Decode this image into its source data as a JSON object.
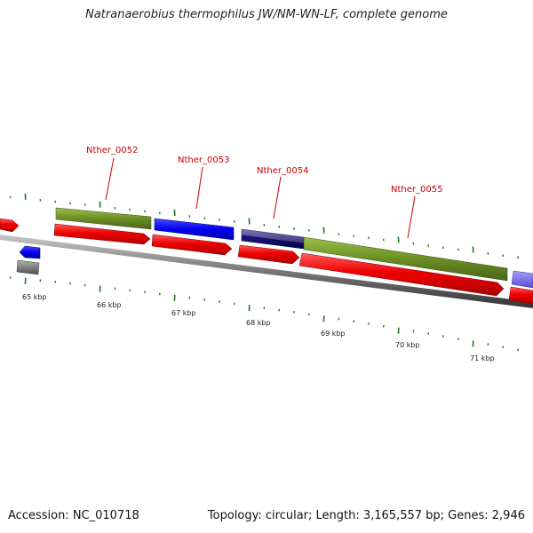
{
  "title": "Natranaerobius thermophilus JW/NM-WN-LF, complete genome",
  "footer": {
    "accession": "Accession: NC_010718",
    "summary": "Topology: circular; Length: 3,165,557 bp; Genes: 2,946"
  },
  "kbp_labels": [
    "65 kbp",
    "66 kbp",
    "67 kbp",
    "68 kbp",
    "69 kbp",
    "70 kbp",
    "71 kbp"
  ],
  "gene_labels": [
    "Nther_0052",
    "Nther_0053",
    "Nther_0054",
    "Nther_0055"
  ],
  "colors": {
    "cds": "#ee0000",
    "olive": "#6b8e23",
    "blue": "#0000ee",
    "slate": "#4b4592",
    "navy": "#000066",
    "lavender": "#7b68ee",
    "grey": "#808080",
    "tick": "#1f7a1f",
    "label": "#cc0000"
  }
}
